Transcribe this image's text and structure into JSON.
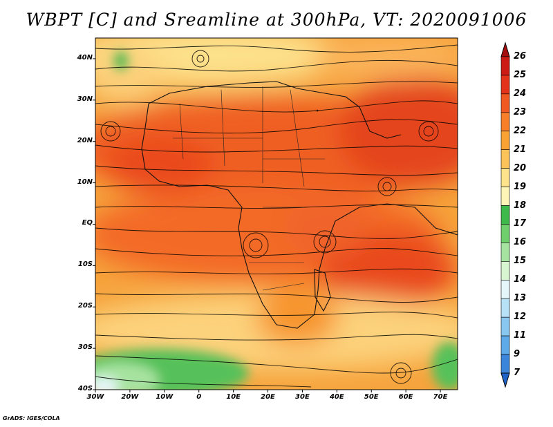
{
  "title": "WBPT [C] and Sreamline at 300hPa, VT: 2020091006",
  "credit": "GrADS: IGES/COLA",
  "map": {
    "lon_range": [
      -30,
      75
    ],
    "lat_range": [
      -40,
      45
    ],
    "lat_ticks": [
      {
        "value": 40,
        "label": "40N"
      },
      {
        "value": 30,
        "label": "30N"
      },
      {
        "value": 20,
        "label": "20N"
      },
      {
        "value": 10,
        "label": "10N"
      },
      {
        "value": 0,
        "label": "EQ"
      },
      {
        "value": -10,
        "label": "10S"
      },
      {
        "value": -20,
        "label": "20S"
      },
      {
        "value": -30,
        "label": "30S"
      },
      {
        "value": -40,
        "label": "40S"
      }
    ],
    "lon_ticks": [
      {
        "value": -30,
        "label": "30W"
      },
      {
        "value": -20,
        "label": "20W"
      },
      {
        "value": -10,
        "label": "10W"
      },
      {
        "value": 0,
        "label": "0"
      },
      {
        "value": 10,
        "label": "10E"
      },
      {
        "value": 20,
        "label": "20E"
      },
      {
        "value": 30,
        "label": "30E"
      },
      {
        "value": 40,
        "label": "40E"
      },
      {
        "value": 50,
        "label": "50E"
      },
      {
        "value": 60,
        "label": "60E"
      },
      {
        "value": 70,
        "label": "70E"
      }
    ]
  },
  "colorbar": {
    "labels": [
      "26",
      "25",
      "24",
      "23",
      "22",
      "21",
      "20",
      "19",
      "18",
      "17",
      "16",
      "15",
      "14",
      "13",
      "12",
      "11",
      "9",
      "7"
    ],
    "colors": [
      "#a50f0f",
      "#cc1a14",
      "#e4331b",
      "#f05a22",
      "#f77f2a",
      "#fba234",
      "#fcc35a",
      "#fde38c",
      "#fdf5b8",
      "#3db84a",
      "#6fcf6c",
      "#a6e3a1",
      "#d8f5d2",
      "#e6f7fb",
      "#b7e1f7",
      "#8ac7f0",
      "#5ea9e8",
      "#3b86db",
      "#1f63c9"
    ]
  }
}
